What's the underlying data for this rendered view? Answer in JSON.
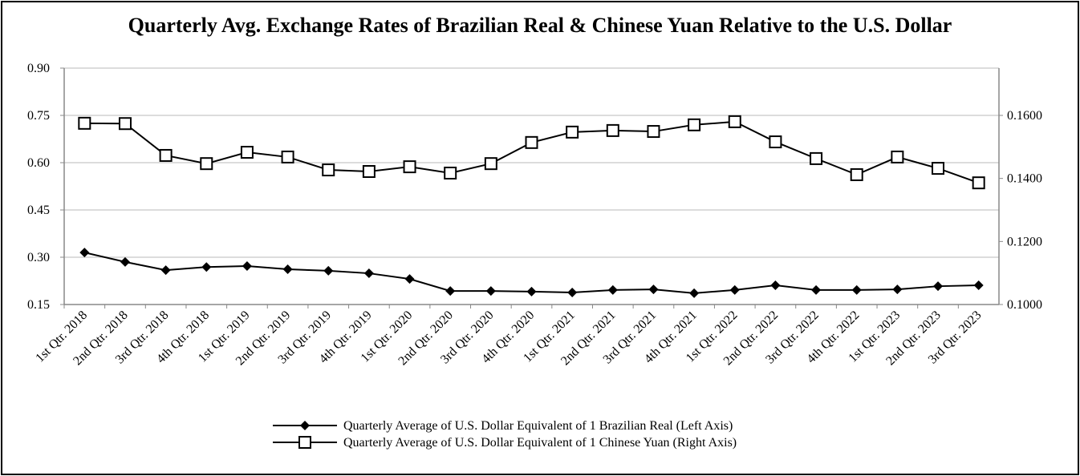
{
  "chart_data": {
    "type": "line",
    "title": "Quarterly Avg. Exchange Rates of Brazilian Real & Chinese Yuan Relative to the U.S. Dollar",
    "xlabel": "",
    "ylabel_left": "",
    "ylabel_right": "",
    "categories": [
      "1st Qtr. 2018",
      "2nd Qtr. 2018",
      "3rd Qtr. 2018",
      "4th Qtr. 2018",
      "1st Qtr. 2019",
      "2nd Qtr. 2019",
      "3rd Qtr. 2019",
      "4th Qtr. 2019",
      "1st Qtr. 2020",
      "2nd Qtr. 2020",
      "3rd Qtr. 2020",
      "4th Qtr. 2020",
      "1st Qtr. 2021",
      "2nd Qtr. 2021",
      "3rd Qtr. 2021",
      "4th Qtr. 2021",
      "1st Qtr. 2022",
      "2nd Qtr. 2022",
      "3rd Qtr. 2022",
      "4th Qtr. 2022",
      "1st Qtr. 2023",
      "2nd Qtr. 2023",
      "3rd Qtr. 2023"
    ],
    "series": [
      {
        "name": "Quarterly Average of U.S. Dollar Equivalent of 1 Brazilian Real (Left Axis)",
        "axis": "left",
        "marker": "diamond",
        "values": [
          0.315,
          0.285,
          0.259,
          0.269,
          0.272,
          0.262,
          0.257,
          0.249,
          0.231,
          0.193,
          0.193,
          0.191,
          0.188,
          0.196,
          0.198,
          0.186,
          0.196,
          0.211,
          0.196,
          0.196,
          0.198,
          0.208,
          0.211
        ]
      },
      {
        "name": "Quarterly Average of U.S. Dollar Equivalent of 1 Chinese Yuan (Right Axis)",
        "axis": "right",
        "marker": "square",
        "values": [
          0.1575,
          0.1574,
          0.1473,
          0.1447,
          0.1483,
          0.1468,
          0.1427,
          0.1422,
          0.1437,
          0.1417,
          0.1447,
          0.1514,
          0.1547,
          0.1552,
          0.1549,
          0.157,
          0.158,
          0.1516,
          0.1463,
          0.1412,
          0.1468,
          0.1432,
          0.1386
        ]
      }
    ],
    "ylim_left": [
      0.15,
      0.9
    ],
    "yticks_left": [
      "0.15",
      "0.30",
      "0.45",
      "0.60",
      "0.75",
      "0.90"
    ],
    "ylim_right": [
      0.1,
      0.175
    ],
    "yticks_right": [
      "0.1000",
      "0.1200",
      "0.1400",
      "0.1600"
    ],
    "grid": true,
    "legend_position": "bottom"
  }
}
